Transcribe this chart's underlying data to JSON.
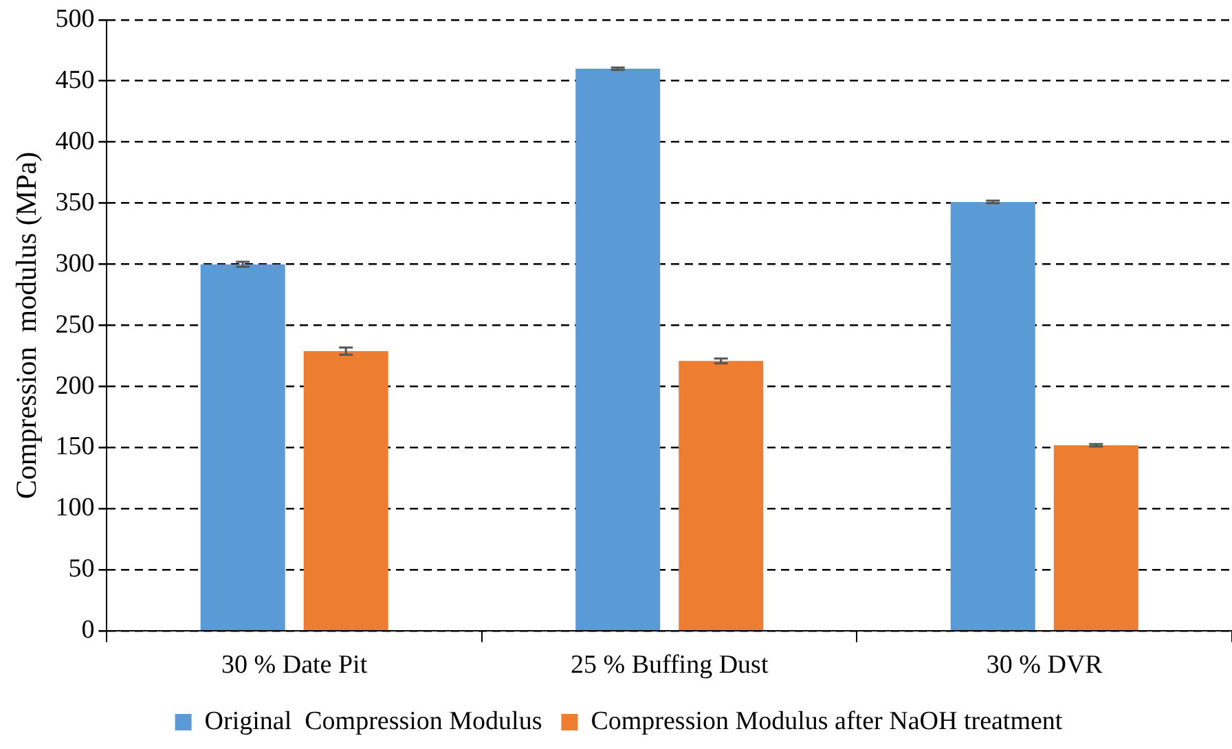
{
  "chart_data": {
    "type": "bar",
    "ylabel": "Compression  modulus (MPa)",
    "categories": [
      "30 % Date Pit",
      "25 % Buffing Dust",
      "30 % DVR"
    ],
    "series": [
      {
        "name": "Original  Compression Modulus",
        "color": "#5b9bd5",
        "values": [
          300,
          460,
          351
        ],
        "errors": [
          2,
          1,
          1
        ]
      },
      {
        "name": "Compression Modulus after NaOH treatment",
        "color": "#ed7d31",
        "values": [
          229,
          221,
          152
        ],
        "errors": [
          3,
          2,
          1
        ]
      }
    ],
    "ylim": [
      0,
      500
    ],
    "yticks": [
      0,
      50,
      100,
      150,
      200,
      250,
      300,
      350,
      400,
      450,
      500
    ],
    "grid": "y",
    "legend": "bottom"
  }
}
